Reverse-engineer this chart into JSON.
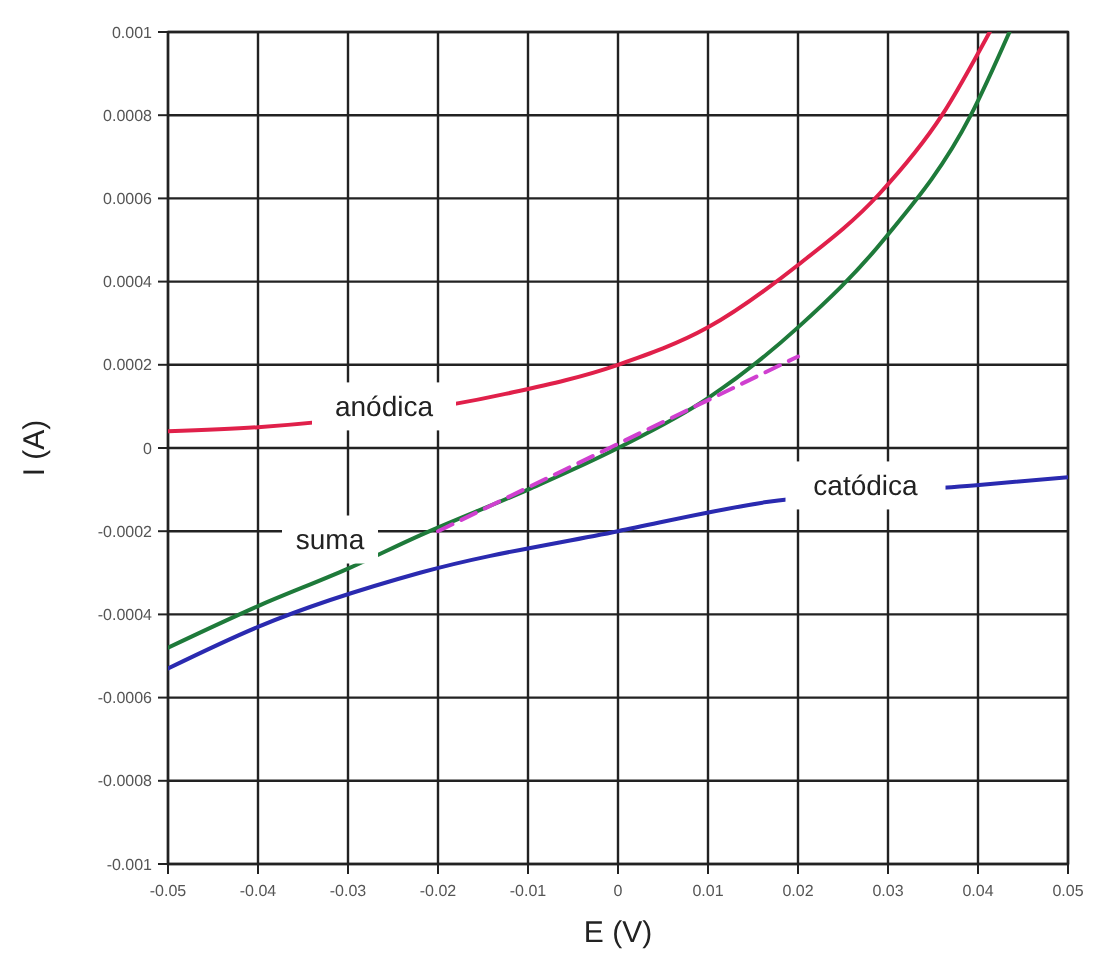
{
  "chart_data": {
    "type": "line",
    "xlabel": "E (V)",
    "ylabel": "I (A)",
    "xlim": [
      -0.05,
      0.05
    ],
    "ylim": [
      -0.001,
      0.001
    ],
    "xticks": [
      -0.05,
      -0.04,
      -0.03,
      -0.02,
      -0.01,
      0,
      0.01,
      0.02,
      0.03,
      0.04,
      0.05
    ],
    "yticks": [
      -0.001,
      -0.0008,
      -0.0006,
      -0.0004,
      -0.0002,
      0,
      0.0002,
      0.0004,
      0.0006,
      0.0008,
      0.001
    ],
    "grid": true,
    "marker": "none",
    "series": [
      {
        "name": "anódica",
        "color": "#e0204a",
        "x": [
          -0.05,
          -0.04,
          -0.0125,
          0,
          0.01,
          0.02,
          0.029,
          0.036,
          0.0413
        ],
        "values": [
          4e-05,
          5e-05,
          0.00013,
          0.0002,
          0.00029,
          0.00044,
          0.00061,
          0.0008,
          0.001
        ]
      },
      {
        "name": "suma",
        "color": "#1e7a3a",
        "x": [
          -0.05,
          -0.04,
          -0.03,
          -0.022,
          -0.01,
          0,
          0.01,
          0.02,
          0.0295,
          0.0392,
          0.0435
        ],
        "values": [
          -0.00048,
          -0.00038,
          -0.00029,
          -0.00021,
          -0.0001,
          0,
          0.00012,
          0.00029,
          0.0005,
          0.0008,
          0.001
        ]
      },
      {
        "name": "catódica",
        "color": "#2a2ab0",
        "x": [
          -0.05,
          -0.04,
          -0.022,
          0,
          0.0165,
          0.0395,
          0.05
        ],
        "values": [
          -0.00053,
          -0.00043,
          -0.0003,
          -0.0002,
          -0.00013,
          -9e-05,
          -7e-05
        ]
      },
      {
        "color": "#d040d0",
        "line_style": "dashed",
        "x": [
          -0.02,
          0.02
        ],
        "values": [
          -0.0002,
          0.00022
        ]
      }
    ]
  }
}
